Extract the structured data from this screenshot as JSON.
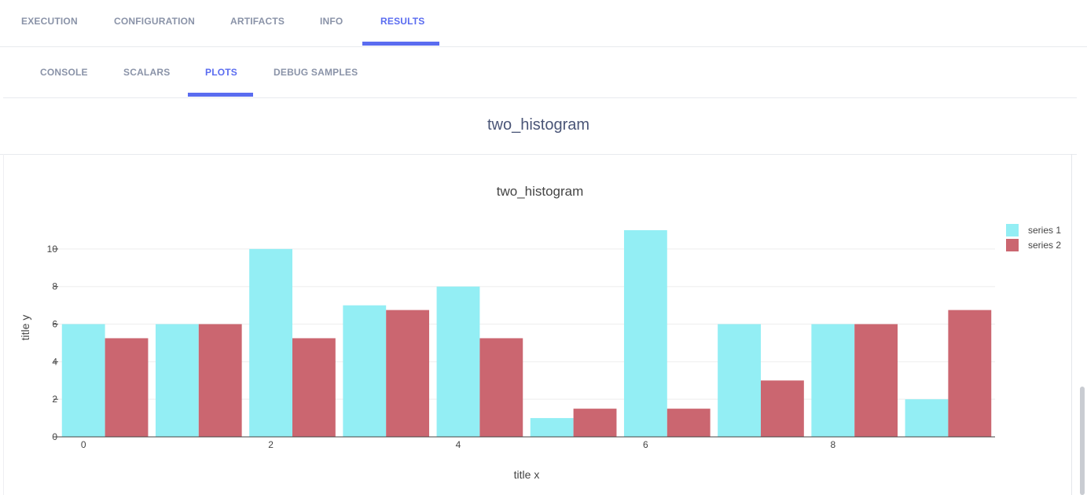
{
  "tabs": {
    "top": [
      "EXECUTION",
      "CONFIGURATION",
      "ARTIFACTS",
      "INFO",
      "RESULTS"
    ],
    "top_active": "RESULTS",
    "sub": [
      "CONSOLE",
      "SCALARS",
      "PLOTS",
      "DEBUG SAMPLES"
    ],
    "sub_active": "PLOTS"
  },
  "plot_header": {
    "title": "two_histogram"
  },
  "colors": {
    "accent": "#5a6cf0",
    "series_1": "#93eef4",
    "series_2": "#cb6670"
  },
  "chart_data": {
    "type": "bar",
    "title": "two_histogram",
    "xlabel": "title x",
    "ylabel": "title y",
    "categories": [
      0,
      1,
      2,
      3,
      4,
      5,
      6,
      7,
      8,
      9
    ],
    "x_ticks": [
      "0",
      "2",
      "4",
      "6",
      "8"
    ],
    "y_ticks": [
      "0",
      "2",
      "4",
      "6",
      "8",
      "10"
    ],
    "ylim": [
      0,
      11.5
    ],
    "grid": true,
    "legend_position": "top-right",
    "series": [
      {
        "name": "series 1",
        "values": [
          6,
          6,
          10,
          7,
          8,
          1,
          11,
          6,
          6,
          2
        ]
      },
      {
        "name": "series 2",
        "values": [
          5.25,
          6,
          5.25,
          6.75,
          5.25,
          1.5,
          1.5,
          3,
          6,
          6.75
        ]
      }
    ]
  }
}
